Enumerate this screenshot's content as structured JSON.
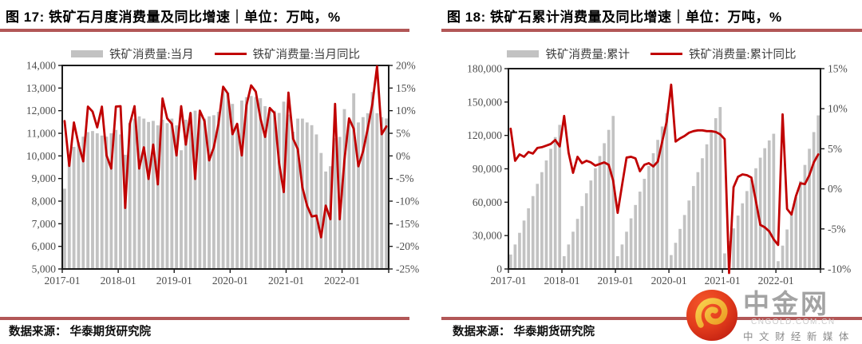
{
  "colors": {
    "bar": "#c2c2c2",
    "line": "#c00000",
    "title_underline": "#b25757",
    "footer_rule": "#b25757",
    "axis_text": "#4d4d4d",
    "logo_red": "#d93a20",
    "logo_gold": "#f2b23c"
  },
  "chart_data": [
    {
      "type": "bar+line",
      "title": "图 17: 铁矿石月度消费量及同比增速｜单位：万吨，%",
      "x_start": "2017-01",
      "x_end": "2022-10",
      "x_tick_labels": [
        "2017-01",
        "2018-01",
        "2019-01",
        "2020-01",
        "2021-01",
        "2022-01"
      ],
      "y_left": {
        "min": 5000,
        "max": 14000,
        "step": 1000
      },
      "y_right": {
        "min": -25,
        "max": 20,
        "step": 5,
        "unit": "%"
      },
      "grid": false,
      "legend_position": "top",
      "legend": [
        {
          "label": "铁矿消费量:当月",
          "swatch": "bar",
          "color": "#c2c2c2"
        },
        {
          "label": "铁矿消费量:当月同比",
          "swatch": "line",
          "color": "#c00000"
        }
      ],
      "series": [
        {
          "name": "铁矿消费量:当月",
          "type": "bar",
          "axis": "left",
          "values": [
            8550,
            9800,
            10400,
            10600,
            10850,
            11050,
            11100,
            11000,
            10900,
            10850,
            11000,
            11150,
            10950,
            10050,
            11450,
            11650,
            11750,
            11650,
            11500,
            11550,
            11350,
            11600,
            11450,
            11650,
            11350,
            10250,
            11600,
            11900,
            12000,
            11850,
            11650,
            11750,
            11800,
            11950,
            12950,
            12800,
            12300,
            11400,
            12450,
            12600,
            12650,
            12600,
            12550,
            12200,
            12100,
            12000,
            11900,
            12400,
            11830,
            11070,
            11650,
            11650,
            11480,
            11360,
            10950,
            10130,
            9310,
            9545,
            10780,
            10840,
            12070,
            11540,
            12770,
            11480,
            11715,
            11890,
            12830,
            11890,
            11715,
            11655
          ]
        },
        {
          "name": "铁矿消费量:当月同比",
          "type": "line",
          "axis": "right",
          "values": [
            7.7,
            -2.2,
            7.4,
            2.5,
            -1.2,
            10.9,
            9.8,
            6.3,
            10.9,
            0.1,
            -2.8,
            10.9,
            11.0,
            -11.5,
            7.1,
            11.0,
            -2.8,
            1.9,
            -5.1,
            2.5,
            -6.3,
            12.7,
            8.3,
            7.1,
            0.1,
            11.0,
            2.5,
            9.5,
            -5.1,
            10.0,
            7.7,
            -1.0,
            1.9,
            7.1,
            15.3,
            13.8,
            4.8,
            7.1,
            0.1,
            11.2,
            15.6,
            14.2,
            8.3,
            4.2,
            10.6,
            9.5,
            -1.6,
            -8.0,
            14.0,
            3.8,
            1.5,
            -7.0,
            -11.0,
            -13.4,
            -13.2,
            -18.0,
            -11.0,
            -14.0,
            11.5,
            -14.0,
            -1.0,
            8.3,
            6.0,
            -2.3,
            1.0,
            6.0,
            11.5,
            19.8,
            4.8,
            6.5
          ]
        }
      ]
    },
    {
      "type": "bar+line",
      "title": "图 18: 铁矿石累计消费量及同比增速｜单位：万吨，%",
      "x_start": "2017-01",
      "x_end": "2022-10",
      "x_tick_labels": [
        "2017-01",
        "2018-01",
        "2019-01",
        "2020-01",
        "2021-01",
        "2022-01"
      ],
      "y_left": {
        "min": 0,
        "max": 180000,
        "step": 30000
      },
      "y_right": {
        "min": -10,
        "max": 15,
        "step": 5,
        "unit": "%"
      },
      "grid": false,
      "legend_position": "top",
      "legend": [
        {
          "label": "铁矿消费量:累计",
          "swatch": "bar",
          "color": "#c2c2c2"
        },
        {
          "label": "铁矿消费量:累计同比",
          "swatch": "line",
          "color": "#c00000"
        }
      ],
      "series": [
        {
          "name": "铁矿消费量:累计",
          "type": "bar",
          "axis": "left",
          "values": [
            13000,
            22000,
            32500,
            43500,
            54500,
            65500,
            76500,
            87000,
            97500,
            108000,
            118500,
            129500,
            11500,
            22000,
            33500,
            45000,
            56500,
            68000,
            79500,
            90500,
            101500,
            113000,
            125000,
            137500,
            11500,
            22000,
            33500,
            45500,
            57500,
            69500,
            81000,
            92500,
            104000,
            116000,
            128000,
            140000,
            12500,
            23500,
            36000,
            48500,
            61500,
            74500,
            87000,
            99500,
            112000,
            124000,
            135500,
            145500,
            14000,
            25000,
            36500,
            48000,
            59000,
            70000,
            80500,
            90500,
            100000,
            108500,
            115500,
            121500,
            7000,
            21000,
            35500,
            50000,
            64500,
            79000,
            93500,
            108000,
            123000,
            138000
          ]
        },
        {
          "name": "铁矿消费量:累计同比",
          "type": "line",
          "axis": "right",
          "values": [
            7.5,
            3.5,
            4.3,
            4.0,
            4.6,
            4.4,
            5.1,
            5.2,
            5.4,
            5.6,
            6.1,
            5.3,
            9.1,
            4.5,
            2.0,
            4.0,
            3.2,
            3.5,
            3.3,
            2.9,
            3.1,
            3.3,
            3.0,
            1.0,
            -3.0,
            0.5,
            3.9,
            4.0,
            3.8,
            2.2,
            3.0,
            3.2,
            2.8,
            3.4,
            5.9,
            8.4,
            13.0,
            5.9,
            6.3,
            6.6,
            7.0,
            7.2,
            7.3,
            7.3,
            7.2,
            7.2,
            7.1,
            6.8,
            6.2,
            -10.5,
            0.2,
            1.5,
            1.8,
            1.7,
            1.4,
            -1.5,
            -4.5,
            -4.8,
            -5.3,
            -6.3,
            -7.0,
            9.3,
            -2.5,
            -3.2,
            -0.9,
            0.7,
            0.6,
            1.7,
            3.3,
            4.3
          ]
        }
      ]
    }
  ],
  "footer": {
    "source_left": "数据来源： 华泰期货研究院",
    "source_right": "数据来源： 华泰期货研究院"
  },
  "logo": {
    "name": "中金网",
    "domain": "CNGOLD.COM.CN",
    "tagline": "中 文 财 经 新 媒 体"
  }
}
